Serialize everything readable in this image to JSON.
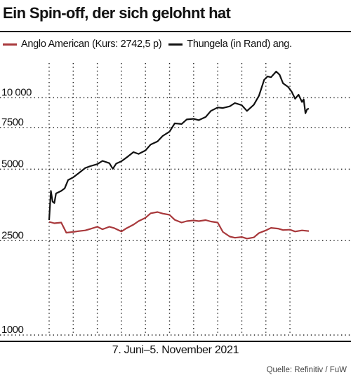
{
  "title": "Ein Spin-off, der sich gelohnt hat",
  "legend": [
    {
      "label": "Anglo American (Kurs: 2742,5 p)",
      "color": "#a8383b"
    },
    {
      "label": "Thungela (in Rand) ang.",
      "color": "#111111"
    }
  ],
  "date_range": "7. Juni–5. November 2021",
  "source": "Quelle: Refinitiv / FuW",
  "chart_data": {
    "type": "line",
    "title": "Ein Spin-off, der sich gelohnt hat",
    "xlabel": "7. Juni–5. November 2021",
    "ylabel": "",
    "y_scale": "log",
    "ylim": [
      1000,
      14000
    ],
    "y_ticks": [
      {
        "value": 1000,
        "label": "1000"
      },
      {
        "value": 2500,
        "label": "2500"
      },
      {
        "value": 5000,
        "label": "5000"
      },
      {
        "value": 7500,
        "label": "7500"
      },
      {
        "value": 10000,
        "label": "10 000"
      }
    ],
    "x_domain": [
      "2021-06-07",
      "2021-11-05"
    ],
    "x_gridlines": [
      "2021-06-07",
      "2021-06-21",
      "2021-07-05",
      "2021-07-19",
      "2021-08-02",
      "2021-08-16",
      "2021-08-30",
      "2021-09-13",
      "2021-09-27",
      "2021-10-11",
      "2021-10-25"
    ],
    "grid": true,
    "legend_position": "top",
    "series": [
      {
        "name": "Anglo American (Kurs: 2742,5 p)",
        "color": "#a8383b",
        "points": [
          [
            "2021-06-07",
            3000
          ],
          [
            "2021-06-10",
            2960
          ],
          [
            "2021-06-14",
            2980
          ],
          [
            "2021-06-17",
            2700
          ],
          [
            "2021-06-21",
            2720
          ],
          [
            "2021-06-24",
            2740
          ],
          [
            "2021-06-28",
            2760
          ],
          [
            "2021-07-01",
            2800
          ],
          [
            "2021-07-05",
            2860
          ],
          [
            "2021-07-08",
            2790
          ],
          [
            "2021-07-12",
            2860
          ],
          [
            "2021-07-15",
            2820
          ],
          [
            "2021-07-19",
            2730
          ],
          [
            "2021-07-22",
            2820
          ],
          [
            "2021-07-26",
            2920
          ],
          [
            "2021-07-29",
            3020
          ],
          [
            "2021-08-02",
            3120
          ],
          [
            "2021-08-05",
            3260
          ],
          [
            "2021-08-09",
            3300
          ],
          [
            "2021-08-12",
            3250
          ],
          [
            "2021-08-16",
            3210
          ],
          [
            "2021-08-19",
            3060
          ],
          [
            "2021-08-23",
            2980
          ],
          [
            "2021-08-26",
            3020
          ],
          [
            "2021-08-30",
            3040
          ],
          [
            "2021-09-02",
            3020
          ],
          [
            "2021-09-06",
            3050
          ],
          [
            "2021-09-09",
            3010
          ],
          [
            "2021-09-13",
            2980
          ],
          [
            "2021-09-16",
            2720
          ],
          [
            "2021-09-20",
            2600
          ],
          [
            "2021-09-23",
            2570
          ],
          [
            "2021-09-27",
            2590
          ],
          [
            "2021-09-30",
            2550
          ],
          [
            "2021-10-04",
            2580
          ],
          [
            "2021-10-07",
            2690
          ],
          [
            "2021-10-11",
            2760
          ],
          [
            "2021-10-14",
            2830
          ],
          [
            "2021-10-18",
            2810
          ],
          [
            "2021-10-21",
            2770
          ],
          [
            "2021-10-25",
            2780
          ],
          [
            "2021-10-28",
            2730
          ],
          [
            "2021-11-01",
            2760
          ],
          [
            "2021-11-05",
            2742.5
          ]
        ]
      },
      {
        "name": "Thungela (in Rand) ang.",
        "color": "#111111",
        "points": [
          [
            "2021-06-07",
            3050
          ],
          [
            "2021-06-08",
            4050
          ],
          [
            "2021-06-09",
            3650
          ],
          [
            "2021-06-10",
            3600
          ],
          [
            "2021-06-11",
            3950
          ],
          [
            "2021-06-14",
            4050
          ],
          [
            "2021-06-16",
            4150
          ],
          [
            "2021-06-18",
            4500
          ],
          [
            "2021-06-21",
            4620
          ],
          [
            "2021-06-24",
            4800
          ],
          [
            "2021-06-28",
            5060
          ],
          [
            "2021-07-01",
            5150
          ],
          [
            "2021-07-05",
            5250
          ],
          [
            "2021-07-08",
            5420
          ],
          [
            "2021-07-12",
            5300
          ],
          [
            "2021-07-14",
            5020
          ],
          [
            "2021-07-16",
            5280
          ],
          [
            "2021-07-19",
            5400
          ],
          [
            "2021-07-22",
            5600
          ],
          [
            "2021-07-26",
            5900
          ],
          [
            "2021-07-29",
            5800
          ],
          [
            "2021-08-02",
            6000
          ],
          [
            "2021-08-05",
            6350
          ],
          [
            "2021-08-09",
            6550
          ],
          [
            "2021-08-12",
            6900
          ],
          [
            "2021-08-16",
            7200
          ],
          [
            "2021-08-19",
            7800
          ],
          [
            "2021-08-23",
            7750
          ],
          [
            "2021-08-26",
            8100
          ],
          [
            "2021-08-30",
            8150
          ],
          [
            "2021-09-02",
            8050
          ],
          [
            "2021-09-06",
            8300
          ],
          [
            "2021-09-09",
            8800
          ],
          [
            "2021-09-13",
            9100
          ],
          [
            "2021-09-16",
            9050
          ],
          [
            "2021-09-20",
            9200
          ],
          [
            "2021-09-23",
            9500
          ],
          [
            "2021-09-27",
            9300
          ],
          [
            "2021-09-30",
            8800
          ],
          [
            "2021-10-04",
            9350
          ],
          [
            "2021-10-07",
            10200
          ],
          [
            "2021-10-10",
            11900
          ],
          [
            "2021-10-12",
            12300
          ],
          [
            "2021-10-14",
            12200
          ],
          [
            "2021-10-17",
            12900
          ],
          [
            "2021-10-19",
            12500
          ],
          [
            "2021-10-21",
            11500
          ],
          [
            "2021-10-24",
            11100
          ],
          [
            "2021-10-26",
            10600
          ],
          [
            "2021-10-28",
            9900
          ],
          [
            "2021-10-30",
            10300
          ],
          [
            "2021-11-01",
            9600
          ],
          [
            "2021-11-02",
            9850
          ],
          [
            "2021-11-03",
            8600
          ],
          [
            "2021-11-04",
            8950
          ],
          [
            "2021-11-05",
            9000
          ]
        ]
      }
    ]
  }
}
